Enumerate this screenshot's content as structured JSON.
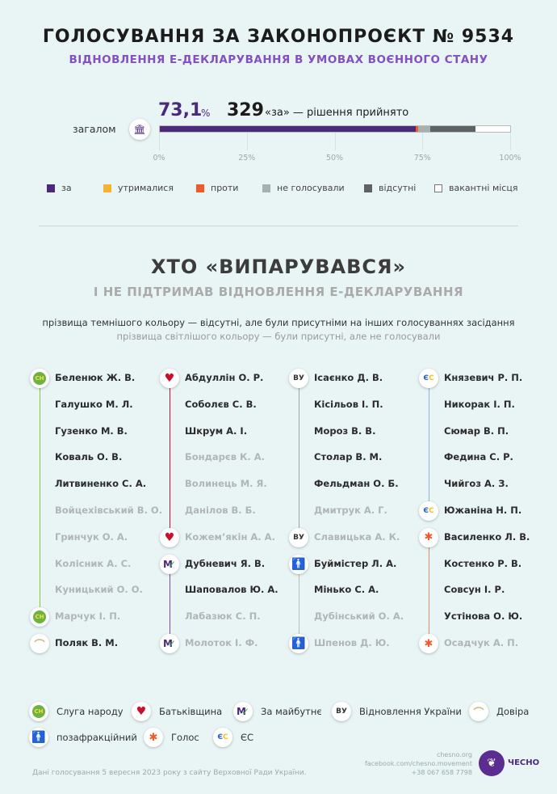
{
  "header": {
    "title": "ГОЛОСУВАННЯ ЗА ЗАКОНОПРОЄКТ № 9534",
    "subtitle": "ВІДНОВЛЕННЯ Е-ДЕКЛАРУВАННЯ В УМОВАХ ВОЄННОГО СТАНУ"
  },
  "summary": {
    "percent": "73,1",
    "percent_sign": "%",
    "votes_for": "329",
    "result_text": "«за» — рішення прийнято",
    "overall_label": "загалом",
    "icon": "parliament-icon"
  },
  "chart_data": {
    "type": "bar",
    "orientation": "horizontal-stacked",
    "categories": [
      "загалом"
    ],
    "series": [
      {
        "name": "за",
        "values": [
          73.1
        ],
        "color": "#4b2a7b"
      },
      {
        "name": "утрималися",
        "values": [
          0
        ],
        "color": "#f5b335"
      },
      {
        "name": "проти",
        "values": [
          0.7
        ],
        "color": "#f0592a"
      },
      {
        "name": "не голосували",
        "values": [
          3.5
        ],
        "color": "#a7b0b0"
      },
      {
        "name": "відсутні",
        "values": [
          12.9
        ],
        "color": "#5d6263"
      },
      {
        "name": "вакантні місця",
        "values": [
          9.8
        ],
        "color": "#ffffff"
      }
    ],
    "xlim": [
      0,
      100
    ],
    "ticks": [
      "0%",
      "25%",
      "50%",
      "75%",
      "100%"
    ],
    "legend": "bottom"
  },
  "section": {
    "title": "ХТО «ВИПАРУВАВСЯ»",
    "subtitle": "І НЕ ПІДТРИМАВ ВІДНОВЛЕННЯ Е-ДЕКЛАРУВАННЯ",
    "note_dark": "прізвища темнішого кольору — відсутні, але були присутніми на інших голосуваннях засідання",
    "note_light": "прізвища світлішого кольору — були присутні, але не голосували"
  },
  "parties": {
    "sn": {
      "label": "Слуга народу",
      "icon": "sluha-narodu-icon",
      "color": "#8cc63f"
    },
    "bat": {
      "label": "Батьківщина",
      "icon": "heart-icon",
      "color": "#c8102e"
    },
    "zm": {
      "label": "За майбутнє",
      "icon": "za-maibutnie-icon",
      "color": "#7a4fa3"
    },
    "vu": {
      "label": "Відновлення України",
      "icon": "vidnovlennia-icon",
      "color": "#9aa6a8"
    },
    "dov": {
      "label": "Довіра",
      "icon": "dovira-icon",
      "color": "#c9c3a0"
    },
    "poza": {
      "label": "позафракційний",
      "icon": "person-icon",
      "color": "#b9bebe"
    },
    "golos": {
      "label": "Голос",
      "icon": "golos-icon",
      "color": "#e58a62"
    },
    "es": {
      "label": "ЄС",
      "icon": "es-icon",
      "color": "#8fb3e0"
    }
  },
  "columns": [
    [
      {
        "party": "sn",
        "members": [
          {
            "name": "Беленюк Ж. В.",
            "status": "absent"
          },
          {
            "name": "Галушко М. Л.",
            "status": "absent"
          },
          {
            "name": "Гузенко М. В.",
            "status": "absent"
          },
          {
            "name": "Коваль О. В.",
            "status": "absent"
          },
          {
            "name": "Литвиненко С. А.",
            "status": "absent"
          },
          {
            "name": "Войцехівський В. О.",
            "status": "present"
          },
          {
            "name": "Гринчук О. А.",
            "status": "present"
          },
          {
            "name": "Колісник А. С.",
            "status": "present"
          },
          {
            "name": "Куницький О. О.",
            "status": "present"
          },
          {
            "name": "Марчук І. П.",
            "status": "present"
          }
        ]
      },
      {
        "party": "dov",
        "members": [
          {
            "name": "Поляк В. М.",
            "status": "absent"
          }
        ]
      }
    ],
    [
      {
        "party": "bat",
        "members": [
          {
            "name": "Абдуллін О. Р.",
            "status": "absent"
          },
          {
            "name": "Соболєв С. В.",
            "status": "absent"
          },
          {
            "name": "Шкрум А. І.",
            "status": "absent"
          },
          {
            "name": "Бондарєв К. А.",
            "status": "present"
          },
          {
            "name": "Волинець М. Я.",
            "status": "present"
          },
          {
            "name": "Данілов В. Б.",
            "status": "present"
          },
          {
            "name": "Кожем’якін А. А.",
            "status": "present"
          }
        ]
      },
      {
        "party": "zm",
        "members": [
          {
            "name": "Дубневич Я. В.",
            "status": "absent"
          },
          {
            "name": "Шаповалов Ю. А.",
            "status": "absent"
          },
          {
            "name": "Лабазюк С. П.",
            "status": "present"
          },
          {
            "name": "Молоток І. Ф.",
            "status": "present"
          }
        ]
      }
    ],
    [
      {
        "party": "vu",
        "members": [
          {
            "name": "Ісаєнко Д. В.",
            "status": "absent"
          },
          {
            "name": "Кісільов І. П.",
            "status": "absent"
          },
          {
            "name": "Мороз В. В.",
            "status": "absent"
          },
          {
            "name": "Столар В. М.",
            "status": "absent"
          },
          {
            "name": "Фельдман О. Б.",
            "status": "absent"
          },
          {
            "name": "Дмитрук А. Г.",
            "status": "present"
          },
          {
            "name": "Славицька А. К.",
            "status": "present"
          }
        ]
      },
      {
        "party": "poza",
        "members": [
          {
            "name": "Буймістер Л. А.",
            "status": "absent"
          },
          {
            "name": "Мінько С. А.",
            "status": "absent"
          },
          {
            "name": "Дубінський О. А.",
            "status": "present"
          },
          {
            "name": "Шпенов Д. Ю.",
            "status": "present"
          }
        ]
      }
    ],
    [
      {
        "party": "es",
        "members": [
          {
            "name": "Князевич Р. П.",
            "status": "absent"
          },
          {
            "name": "Никорак І. П.",
            "status": "absent"
          },
          {
            "name": "Сюмар В. П.",
            "status": "absent"
          },
          {
            "name": "Федина С. Р.",
            "status": "absent"
          },
          {
            "name": "Чийгоз А. З.",
            "status": "absent"
          },
          {
            "name": "Южаніна Н. П.",
            "status": "absent"
          }
        ]
      },
      {
        "party": "golos",
        "members": [
          {
            "name": "Василенко Л. В.",
            "status": "absent"
          },
          {
            "name": "Костенко Р. В.",
            "status": "absent"
          },
          {
            "name": "Совсун І. Р.",
            "status": "absent"
          },
          {
            "name": "Устінова О. Ю.",
            "status": "absent"
          },
          {
            "name": "Осадчук А. П.",
            "status": "present"
          }
        ]
      }
    ]
  ],
  "party_legend": [
    "sn",
    "bat",
    "zm",
    "vu",
    "dov",
    "poza",
    "golos",
    "es"
  ],
  "footer": {
    "source": "Дані голосування 5 вересня 2023 року з сайту Верховної Ради України.",
    "site": "chesno.org",
    "facebook": "facebook.com/chesno.movement",
    "phone": "+38 067 658 7798",
    "logo_text": "ЧЕСНО"
  }
}
